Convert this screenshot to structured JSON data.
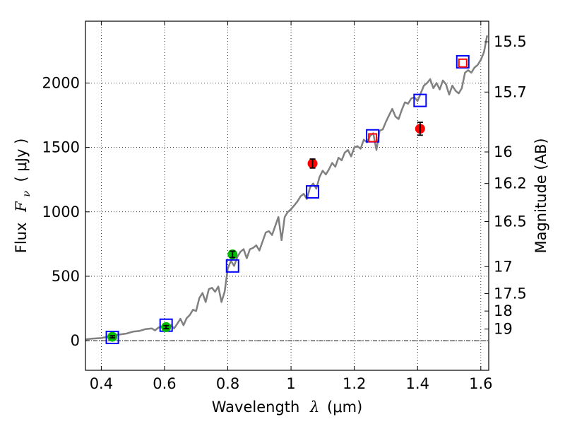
{
  "chart_data": {
    "type": "scatter",
    "xlabel": "Wavelength",
    "xlabel_symbol": "λ",
    "xlabel_unit": "(μm)",
    "ylabel": "Flux",
    "ylabel_symbol": "F",
    "ylabel_subscript": "ν",
    "ylabel_unit": "( μJy )",
    "y2label": "Magnitude (AB)",
    "xlim": [
      0.35,
      1.625
    ],
    "ylim": [
      -230,
      2480
    ],
    "grid": "dotted",
    "x_ticks": [
      "0.4",
      "0.6",
      "0.8",
      "1",
      "1.2",
      "1.4",
      "1.6"
    ],
    "x_tick_values": [
      0.4,
      0.6,
      0.8,
      1.0,
      1.2,
      1.4,
      1.6
    ],
    "y_ticks": [
      "0",
      "500",
      "1000",
      "1500",
      "2000"
    ],
    "y_tick_values": [
      0,
      500,
      1000,
      1500,
      2000
    ],
    "y2_ticks": [
      "15.5",
      "15.7",
      "16",
      "16.2",
      "16.5",
      "17",
      "17.5",
      "18",
      "19"
    ],
    "y2_tick_flux": [
      2320,
      1930,
      1465,
      1220,
      925,
      575,
      365,
      230,
      90
    ],
    "zero_line_color": "#000000",
    "series": [
      {
        "kind": "line",
        "color": "#808080",
        "x": [
          0.35,
          0.37,
          0.4,
          0.43,
          0.45,
          0.48,
          0.5,
          0.52,
          0.54,
          0.56,
          0.57,
          0.58,
          0.59,
          0.6,
          0.61,
          0.62,
          0.63,
          0.64,
          0.65,
          0.66,
          0.67,
          0.68,
          0.69,
          0.7,
          0.71,
          0.72,
          0.73,
          0.74,
          0.75,
          0.76,
          0.77,
          0.78,
          0.79,
          0.8,
          0.81,
          0.82,
          0.83,
          0.84,
          0.85,
          0.86,
          0.87,
          0.88,
          0.89,
          0.9,
          0.91,
          0.92,
          0.93,
          0.94,
          0.95,
          0.96,
          0.97,
          0.98,
          0.99,
          1.0,
          1.01,
          1.02,
          1.03,
          1.04,
          1.05,
          1.06,
          1.07,
          1.08,
          1.09,
          1.1,
          1.11,
          1.12,
          1.13,
          1.14,
          1.15,
          1.16,
          1.17,
          1.18,
          1.19,
          1.2,
          1.21,
          1.22,
          1.23,
          1.24,
          1.25,
          1.26,
          1.27,
          1.28,
          1.29,
          1.3,
          1.31,
          1.32,
          1.33,
          1.34,
          1.35,
          1.36,
          1.37,
          1.38,
          1.39,
          1.4,
          1.41,
          1.42,
          1.43,
          1.44,
          1.45,
          1.46,
          1.47,
          1.48,
          1.49,
          1.5,
          1.51,
          1.52,
          1.53,
          1.54,
          1.55,
          1.56,
          1.57,
          1.58,
          1.59,
          1.6,
          1.61,
          1.62
        ],
        "y": [
          10,
          15,
          20,
          35,
          45,
          55,
          70,
          75,
          90,
          95,
          80,
          100,
          110,
          90,
          115,
          120,
          95,
          130,
          170,
          120,
          175,
          200,
          240,
          230,
          330,
          370,
          300,
          400,
          410,
          380,
          420,
          300,
          380,
          560,
          620,
          580,
          650,
          690,
          710,
          640,
          710,
          720,
          740,
          700,
          770,
          840,
          850,
          820,
          890,
          960,
          780,
          960,
          1000,
          1020,
          1050,
          1080,
          1120,
          1140,
          1100,
          1190,
          1220,
          1180,
          1270,
          1320,
          1290,
          1330,
          1380,
          1350,
          1420,
          1400,
          1460,
          1480,
          1430,
          1500,
          1510,
          1490,
          1560,
          1540,
          1590,
          1610,
          1480,
          1630,
          1640,
          1700,
          1750,
          1800,
          1740,
          1720,
          1790,
          1850,
          1840,
          1880,
          1890,
          1860,
          1920,
          1980,
          2000,
          2030,
          1960,
          2000,
          1950,
          2020,
          1990,
          1910,
          1980,
          1940,
          1920,
          1960,
          2080,
          2100,
          2080,
          2120,
          2140,
          2180,
          2240,
          2370
        ]
      },
      {
        "kind": "squares",
        "color": "#0000ff",
        "x": [
          0.435,
          0.605,
          0.815,
          1.068,
          1.258,
          1.408,
          1.543
        ],
        "y": [
          25,
          120,
          580,
          1155,
          1590,
          1865,
          2165
        ]
      },
      {
        "kind": "squares",
        "color": "#ff0000",
        "x": [
          1.258,
          1.543
        ],
        "y": [
          1575,
          2155
        ]
      },
      {
        "kind": "points",
        "color": "#00bb00",
        "x": [
          0.435,
          0.605,
          0.815
        ],
        "y": [
          30,
          105,
          670
        ],
        "yerr": [
          8,
          12,
          25
        ]
      },
      {
        "kind": "points",
        "color": "#ff0000",
        "x": [
          1.068,
          1.408
        ],
        "y": [
          1375,
          1645
        ],
        "yerr": [
          35,
          50
        ]
      }
    ]
  }
}
